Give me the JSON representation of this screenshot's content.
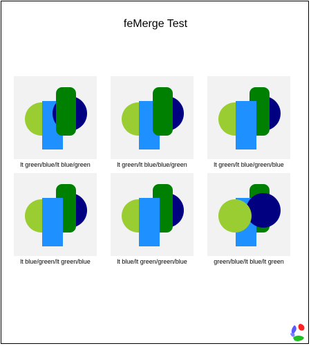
{
  "page": {
    "title": "feMerge Test"
  },
  "colors": {
    "panel_bg": "#f2f2f2",
    "lt_green": "#9acd32",
    "blue": "#1e90ff",
    "green": "#008000",
    "dark_blue": "#000080"
  },
  "tests": [
    {
      "label": "lt green/blue/lt blue/green",
      "order": [
        "lt_green",
        "blue",
        "dark_blue",
        "green"
      ]
    },
    {
      "label": "lt green/lt blue/blue/green",
      "order": [
        "lt_green",
        "dark_blue",
        "blue",
        "green"
      ]
    },
    {
      "label": "lt green/lt blue/green/blue",
      "order": [
        "lt_green",
        "dark_blue",
        "green",
        "blue"
      ]
    },
    {
      "label": "lt blue/green/lt green/blue",
      "order": [
        "dark_blue",
        "green",
        "lt_green",
        "blue"
      ]
    },
    {
      "label": "lt blue/lt green/green/blue",
      "order": [
        "dark_blue",
        "lt_green",
        "green",
        "blue"
      ]
    },
    {
      "label": "green/blue/lt blue/lt green",
      "order": [
        "green",
        "blue",
        "dark_blue",
        "lt_green"
      ]
    }
  ],
  "logo": {
    "icon": "svg-logo-icon"
  }
}
